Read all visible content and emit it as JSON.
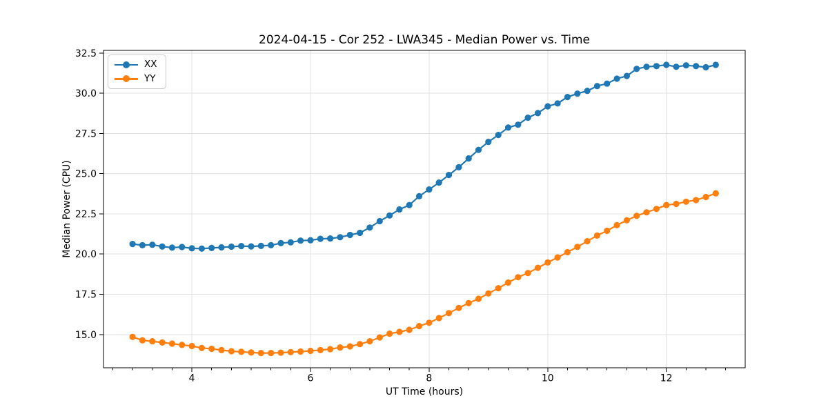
{
  "chart_data": {
    "type": "line",
    "title": "2024-04-15 - Cor 252 - LWA345 - Median Power vs. Time",
    "xlabel": "UT Time (hours)",
    "ylabel": "Median Power (CPU)",
    "xlim": [
      2.51,
      13.33
    ],
    "ylim": [
      12.93,
      32.67
    ],
    "xticks": [
      4,
      6,
      8,
      10,
      12
    ],
    "xtick_labels": [
      "4",
      "6",
      "8",
      "10",
      "12"
    ],
    "x_minor_step": 0.33333,
    "yticks": [
      15.0,
      17.5,
      20.0,
      22.5,
      25.0,
      27.5,
      30.0,
      32.5
    ],
    "ytick_labels": [
      "15.0",
      "17.5",
      "20.0",
      "22.5",
      "25.0",
      "27.5",
      "30.0",
      "32.5"
    ],
    "grid": true,
    "legend_position": "upper-left",
    "colors": {
      "grid": "#e0e0e0",
      "spine": "#000000",
      "text": "#000000"
    },
    "x": [
      3.0,
      3.1667,
      3.3333,
      3.5,
      3.6667,
      3.8333,
      4.0,
      4.1667,
      4.3333,
      4.5,
      4.6667,
      4.8333,
      5.0,
      5.1667,
      5.3333,
      5.5,
      5.6667,
      5.8333,
      6.0,
      6.1667,
      6.3333,
      6.5,
      6.6667,
      6.8333,
      7.0,
      7.1667,
      7.3333,
      7.5,
      7.6667,
      7.8333,
      8.0,
      8.1667,
      8.3333,
      8.5,
      8.6667,
      8.8333,
      9.0,
      9.1667,
      9.3333,
      9.5,
      9.6667,
      9.8333,
      10.0,
      10.1667,
      10.3333,
      10.5,
      10.6667,
      10.8333,
      11.0,
      11.1667,
      11.3333,
      11.5,
      11.6667,
      11.8333,
      12.0,
      12.1667,
      12.3333,
      12.5,
      12.6667,
      12.8333
    ],
    "series": [
      {
        "name": "XX",
        "color": "#1f77b4",
        "values": [
          20.63,
          20.55,
          20.58,
          20.47,
          20.4,
          20.44,
          20.36,
          20.34,
          20.38,
          20.42,
          20.46,
          20.5,
          20.48,
          20.51,
          20.55,
          20.68,
          20.73,
          20.84,
          20.86,
          20.95,
          20.97,
          21.05,
          21.19,
          21.32,
          21.65,
          22.05,
          22.4,
          22.78,
          23.05,
          23.6,
          24.02,
          24.45,
          24.92,
          25.4,
          25.95,
          26.48,
          26.98,
          27.41,
          27.87,
          28.05,
          28.48,
          28.77,
          29.19,
          29.37,
          29.77,
          29.98,
          30.15,
          30.45,
          30.6,
          30.91,
          31.08,
          31.52,
          31.65,
          31.69,
          31.77,
          31.65,
          31.74,
          31.69,
          31.62,
          31.77
        ]
      },
      {
        "name": "YY",
        "color": "#ff7f0e",
        "values": [
          14.85,
          14.64,
          14.58,
          14.5,
          14.43,
          14.35,
          14.28,
          14.16,
          14.11,
          14.03,
          13.96,
          13.92,
          13.88,
          13.85,
          13.85,
          13.87,
          13.9,
          13.94,
          13.98,
          14.03,
          14.09,
          14.19,
          14.26,
          14.4,
          14.58,
          14.82,
          15.05,
          15.16,
          15.29,
          15.52,
          15.73,
          16.02,
          16.33,
          16.65,
          16.95,
          17.22,
          17.55,
          17.88,
          18.23,
          18.56,
          18.82,
          19.15,
          19.48,
          19.79,
          20.12,
          20.45,
          20.8,
          21.15,
          21.45,
          21.8,
          22.1,
          22.38,
          22.6,
          22.81,
          23.05,
          23.12,
          23.26,
          23.36,
          23.55,
          23.78
        ]
      }
    ]
  }
}
